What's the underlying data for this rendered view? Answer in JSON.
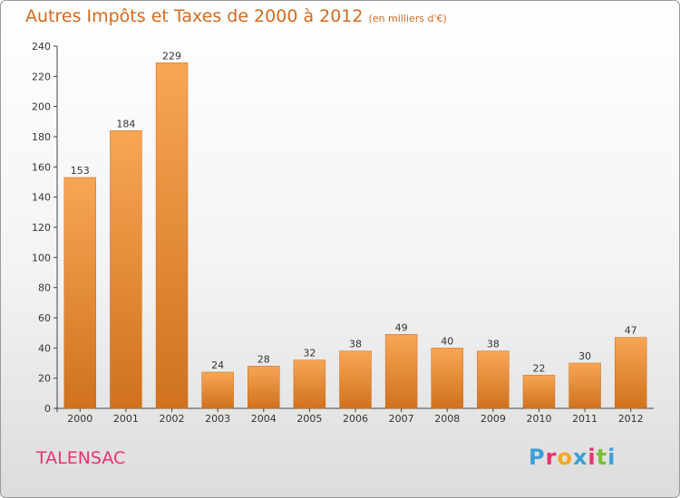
{
  "title": "Autres Impôts et Taxes de 2000 à 2012",
  "subtitle": "(en milliers d'€)",
  "commune": "TALENSAC",
  "logo": {
    "text": "Proxiti",
    "colors": [
      "#3a9fd8",
      "#e8336f",
      "#f5a623",
      "#3a9fd8",
      "#e8336f",
      "#7bbf3a",
      "#3a9fd8"
    ]
  },
  "colors": {
    "bar_light": "#f7a655",
    "bar_dark": "#d0721e",
    "title": "#d2691e",
    "commune": "#e8336f"
  },
  "chart_data": {
    "type": "bar",
    "title": "Autres Impôts et Taxes de 2000 à 2012",
    "subtitle": "(en milliers d'€)",
    "xlabel": "",
    "ylabel": "",
    "categories": [
      "2000",
      "2001",
      "2002",
      "2003",
      "2004",
      "2005",
      "2006",
      "2007",
      "2008",
      "2009",
      "2010",
      "2011",
      "2012"
    ],
    "values": [
      153,
      184,
      229,
      24,
      28,
      32,
      38,
      49,
      40,
      38,
      22,
      30,
      47
    ],
    "ylim": [
      0,
      240
    ],
    "yticks": [
      0,
      20,
      40,
      60,
      80,
      100,
      120,
      140,
      160,
      180,
      200,
      220,
      240
    ],
    "grid": false,
    "data_labels": true
  }
}
